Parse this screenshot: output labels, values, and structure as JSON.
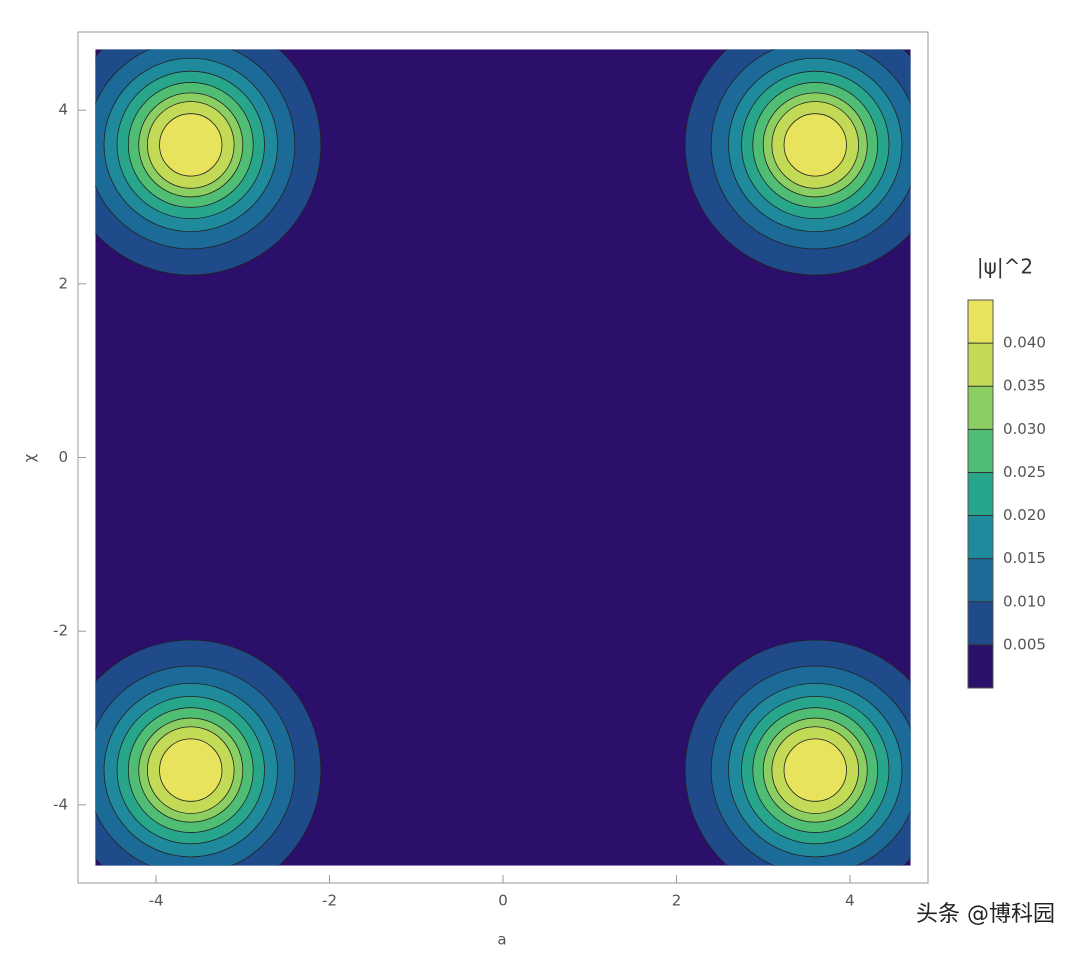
{
  "chart_data": {
    "type": "contour",
    "xlabel": "a",
    "ylabel": "χ",
    "xlim": [
      -4.9,
      4.9
    ],
    "ylim": [
      -4.9,
      4.9
    ],
    "xticks": [
      -4,
      -2,
      0,
      2,
      4
    ],
    "yticks": [
      -4,
      -2,
      0,
      2,
      4
    ],
    "data_range": [
      -4.7,
      4.7
    ],
    "peaks": [
      {
        "x": -3.6,
        "y": 3.6
      },
      {
        "x": 3.6,
        "y": 3.6
      },
      {
        "x": -3.6,
        "y": -3.6
      },
      {
        "x": 3.6,
        "y": -3.6
      }
    ],
    "levels": [
      0.005,
      0.01,
      0.015,
      0.02,
      0.025,
      0.03,
      0.035,
      0.04
    ],
    "level_radii": [
      1.5,
      1.2,
      1.0,
      0.85,
      0.72,
      0.6,
      0.5,
      0.36
    ],
    "colors": [
      "#2b0f6b",
      "#1f4b8a",
      "#1c6a98",
      "#1f8a9c",
      "#27a68c",
      "#4fbd74",
      "#8bcf62",
      "#c3da57",
      "#e8e35c"
    ],
    "colorbar_title": "|ψ|^2",
    "colorbar_lim": [
      0,
      0.045
    ],
    "colorbar_ticks": [
      {
        "value": 0.005,
        "label": "0.005"
      },
      {
        "value": 0.01,
        "label": "0.010"
      },
      {
        "value": 0.015,
        "label": "0.015"
      },
      {
        "value": 0.02,
        "label": "0.020"
      },
      {
        "value": 0.025,
        "label": "0.025"
      },
      {
        "value": 0.03,
        "label": "0.030"
      },
      {
        "value": 0.035,
        "label": "0.035"
      },
      {
        "value": 0.04,
        "label": "0.040"
      }
    ]
  },
  "watermark": "头条 @博科园"
}
